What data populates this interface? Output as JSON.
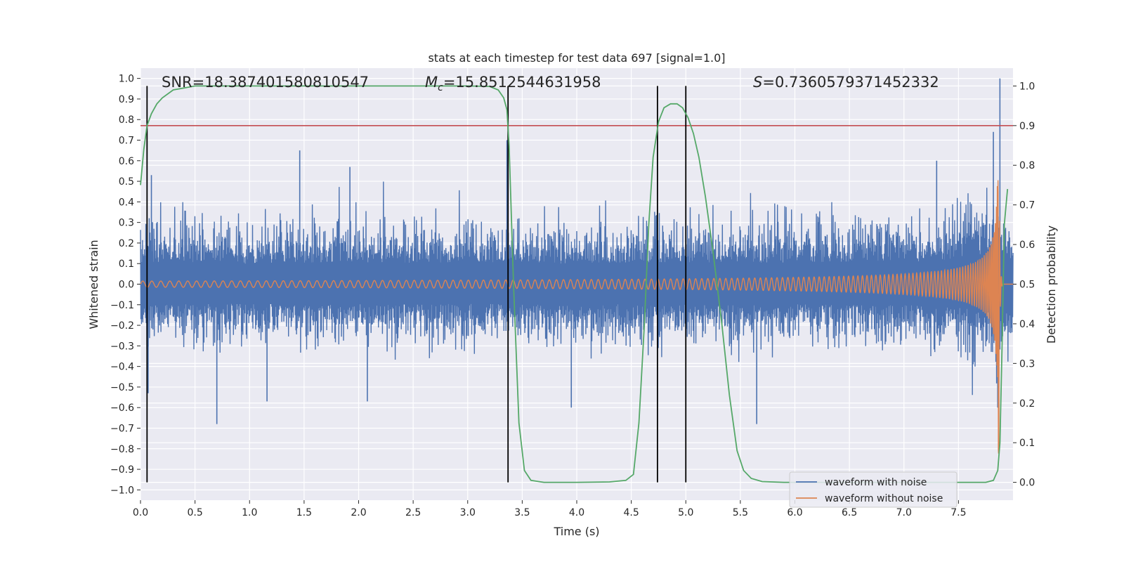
{
  "chart_data": {
    "type": "line",
    "title": "stats at each timestep for test data 697 [signal=1.0]",
    "xlabel": "Time (s)",
    "ylabel": "Whitened strain",
    "y2label": "Detection probability",
    "xlim": [
      0.0,
      8.0
    ],
    "ylim": [
      -1.05,
      1.05
    ],
    "y2lim": [
      -0.045,
      1.045
    ],
    "x_ticks": [
      0.0,
      0.5,
      1.0,
      1.5,
      2.0,
      2.5,
      3.0,
      3.5,
      4.0,
      4.5,
      5.0,
      5.5,
      6.0,
      6.5,
      7.0,
      7.5
    ],
    "x_tick_labels": [
      "0.0",
      "0.5",
      "1.0",
      "1.5",
      "2.0",
      "2.5",
      "3.0",
      "3.5",
      "4.0",
      "4.5",
      "5.0",
      "5.5",
      "6.0",
      "6.5",
      "7.0",
      "7.5"
    ],
    "y_ticks": [
      1.0,
      0.9,
      0.8,
      0.7,
      0.6,
      0.5,
      0.4,
      0.3,
      0.2,
      0.1,
      0.0,
      -0.1,
      -0.2,
      -0.3,
      -0.4,
      -0.5,
      -0.6,
      -0.7,
      -0.8,
      -0.9,
      -1.0
    ],
    "y_tick_labels": [
      "1.0",
      "0.9",
      "0.8",
      "0.7",
      "0.6",
      "0.5",
      "0.4",
      "0.3",
      "0.2",
      "0.1",
      "0.0",
      "−0.1",
      "−0.2",
      "−0.3",
      "−0.4",
      "−0.5",
      "−0.6",
      "−0.7",
      "−0.8",
      "−0.9",
      "−1.0"
    ],
    "y2_ticks": [
      1.0,
      0.9,
      0.8,
      0.7,
      0.6,
      0.5,
      0.4,
      0.3,
      0.2,
      0.1,
      0.0
    ],
    "y2_tick_labels": [
      "1.0",
      "0.9",
      "0.8",
      "0.7",
      "0.6",
      "0.5",
      "0.4",
      "0.3",
      "0.2",
      "0.1",
      "0.0"
    ],
    "grid": true,
    "legend_position": "bottom-right",
    "annotations": {
      "snr": "SNR=18.387401580810547",
      "mc_symbol": "M",
      "mc_sub": "c",
      "mc_value": "=15.8512544631958",
      "s_symbol": "S",
      "s_value": "=0.7360579371452332"
    },
    "threshold_line": {
      "y2": 0.9,
      "color": "#c44e52"
    },
    "vertical_lines_x": [
      0.06,
      3.37,
      4.74,
      5.0
    ],
    "series": [
      {
        "name": "waveform with noise",
        "color": "#4c72b0",
        "axis": "left",
        "envelope_x": [
          0.0,
          0.5,
          1.0,
          1.5,
          2.0,
          2.5,
          3.0,
          3.5,
          4.0,
          4.5,
          5.0,
          5.5,
          6.0,
          6.5,
          7.0,
          7.5,
          7.8,
          7.9,
          8.0
        ],
        "envelope_upper": [
          0.3,
          0.3,
          0.28,
          0.3,
          0.3,
          0.29,
          0.3,
          0.3,
          0.28,
          0.3,
          0.3,
          0.3,
          0.3,
          0.31,
          0.31,
          0.34,
          0.42,
          0.45,
          0.3
        ],
        "envelope_lower": [
          -0.27,
          -0.28,
          -0.27,
          -0.28,
          -0.27,
          -0.28,
          -0.27,
          -0.28,
          -0.28,
          -0.28,
          -0.28,
          -0.28,
          -0.28,
          -0.29,
          -0.29,
          -0.32,
          -0.4,
          -0.43,
          -0.3
        ],
        "peaks": [
          {
            "x": 0.07,
            "y": -0.53
          },
          {
            "x": 0.1,
            "y": 0.53
          },
          {
            "x": 0.7,
            "y": -0.68
          },
          {
            "x": 1.46,
            "y": 0.65
          },
          {
            "x": 1.16,
            "y": -0.57
          },
          {
            "x": 1.92,
            "y": 0.57
          },
          {
            "x": 2.08,
            "y": -0.57
          },
          {
            "x": 3.36,
            "y": 0.7
          },
          {
            "x": 3.95,
            "y": -0.6
          },
          {
            "x": 5.65,
            "y": -0.68
          },
          {
            "x": 7.3,
            "y": 0.6
          },
          {
            "x": 7.82,
            "y": 0.74
          },
          {
            "x": 7.88,
            "y": 1.0
          },
          {
            "x": 7.86,
            "y": -0.6
          }
        ]
      },
      {
        "name": "waveform without noise",
        "color": "#dd8452",
        "axis": "left",
        "chirp_start": 0.0,
        "chirp_merge": 7.87,
        "chirp_f0": 12,
        "chirp_a0": 0.015,
        "chirp_peak_amp": 0.84,
        "ringdown_end": 7.9
      },
      {
        "name": "detection probability",
        "color": "#55a868",
        "axis": "right",
        "x": [
          0.0,
          0.03,
          0.06,
          0.1,
          0.15,
          0.2,
          0.3,
          0.5,
          1.0,
          2.0,
          3.0,
          3.2,
          3.28,
          3.33,
          3.36,
          3.38,
          3.42,
          3.47,
          3.52,
          3.58,
          3.7,
          4.0,
          4.3,
          4.45,
          4.52,
          4.57,
          4.62,
          4.66,
          4.7,
          4.75,
          4.8,
          4.86,
          4.92,
          4.97,
          5.02,
          5.07,
          5.12,
          5.18,
          5.25,
          5.33,
          5.4,
          5.47,
          5.53,
          5.6,
          5.7,
          5.9,
          6.5,
          7.0,
          7.5,
          7.75,
          7.82,
          7.86,
          7.88,
          7.9,
          7.92,
          7.95
        ],
        "y": [
          0.75,
          0.84,
          0.9,
          0.93,
          0.955,
          0.97,
          0.99,
          1.0,
          1.0,
          1.0,
          1.0,
          0.999,
          0.99,
          0.97,
          0.94,
          0.85,
          0.5,
          0.15,
          0.03,
          0.005,
          0.0,
          0.0,
          0.001,
          0.005,
          0.02,
          0.15,
          0.4,
          0.65,
          0.82,
          0.91,
          0.945,
          0.955,
          0.955,
          0.945,
          0.92,
          0.88,
          0.82,
          0.72,
          0.58,
          0.4,
          0.22,
          0.08,
          0.03,
          0.01,
          0.002,
          0.0,
          0.0,
          0.0,
          0.0,
          0.0,
          0.005,
          0.03,
          0.1,
          0.35,
          0.65,
          0.74
        ]
      }
    ]
  }
}
